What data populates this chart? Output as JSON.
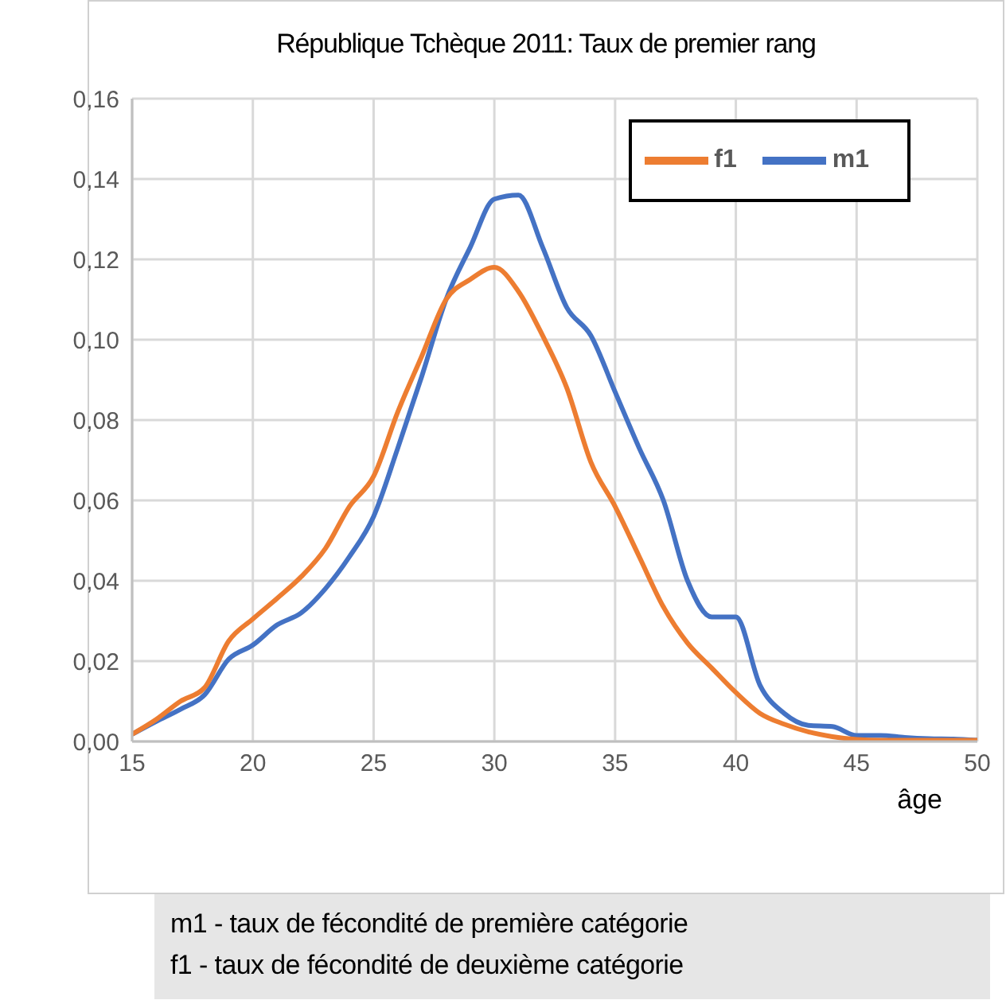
{
  "chart_data": {
    "type": "line",
    "title": "République Tchèque 2011: Taux de premier rang",
    "xlabel": "âge",
    "x": [
      15,
      16,
      17,
      18,
      19,
      20,
      21,
      22,
      23,
      24,
      25,
      26,
      27,
      28,
      29,
      30,
      31,
      32,
      33,
      34,
      35,
      36,
      37,
      38,
      39,
      40,
      41,
      42,
      43,
      44,
      45,
      46,
      47,
      48,
      49,
      50
    ],
    "series": [
      {
        "name": "m1",
        "color": "#4472c4",
        "values": [
          0.0018,
          0.005,
          0.008,
          0.0116,
          0.0205,
          0.024,
          0.029,
          0.032,
          0.038,
          0.046,
          0.056,
          0.073,
          0.091,
          0.11,
          0.123,
          0.135,
          0.136,
          0.123,
          0.108,
          0.101,
          0.087,
          0.073,
          0.06,
          0.04,
          0.031,
          0.031,
          0.014,
          0.007,
          0.004,
          0.0037,
          0.0015,
          0.0015,
          0.001,
          0.0007,
          0.0006,
          0.0003
        ]
      },
      {
        "name": "f1",
        "color": "#ed7d31",
        "values": [
          0.0018,
          0.0055,
          0.01,
          0.0134,
          0.025,
          0.0305,
          0.0356,
          0.041,
          0.048,
          0.0585,
          0.066,
          0.082,
          0.096,
          0.11,
          0.115,
          0.118,
          0.112,
          0.101,
          0.088,
          0.0695,
          0.0585,
          0.046,
          0.0335,
          0.0245,
          0.0183,
          0.0122,
          0.007,
          0.0043,
          0.0024,
          0.0012,
          0.0005,
          0.0003,
          0.0003,
          0.0003,
          0.0003,
          0.0003
        ]
      }
    ],
    "xlim": [
      15,
      50
    ],
    "xticks": [
      15,
      20,
      25,
      30,
      35,
      40,
      45,
      50
    ],
    "ylim": [
      0,
      0.16
    ],
    "yticks": [
      {
        "value": 0,
        "label": "0,00"
      },
      {
        "value": 0.02,
        "label": "0,02"
      },
      {
        "value": 0.04,
        "label": "0,04"
      },
      {
        "value": 0.06,
        "label": "0,06"
      },
      {
        "value": 0.08,
        "label": "0,08"
      },
      {
        "value": 0.1,
        "label": "0,10"
      },
      {
        "value": 0.12,
        "label": "0,12"
      },
      {
        "value": 0.14,
        "label": "0,14"
      },
      {
        "value": 0.16,
        "label": "0,16"
      }
    ],
    "grid": true,
    "legend": "top right",
    "marker": "none",
    "line_style": "solid",
    "annotations": [
      "m1 - taux de fécondité de première catégorie",
      "f1 - taux de fécondité de deuxième catégorie"
    ]
  }
}
